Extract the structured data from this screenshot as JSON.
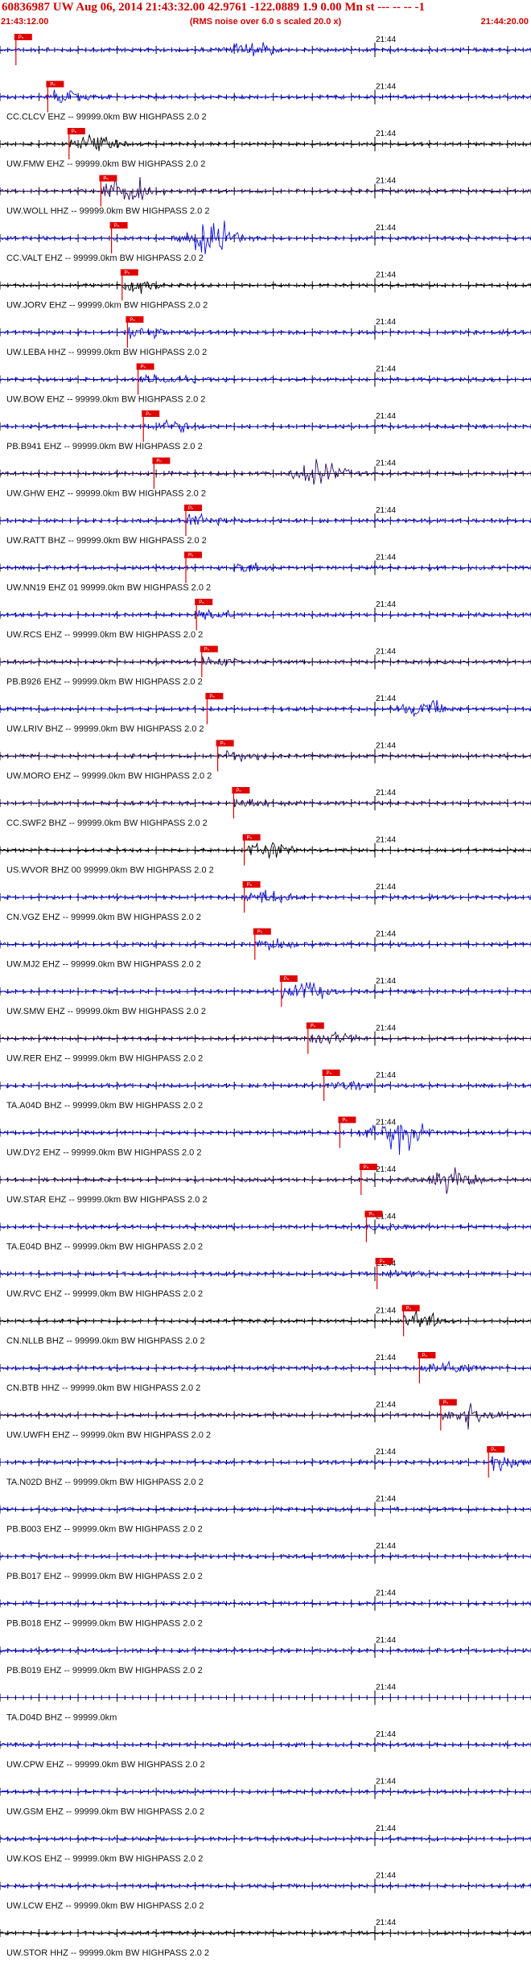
{
  "header": {
    "title": "60836987 UW Aug 06, 2014 21:43:32.00   42.9761 -122.0889  1.9 0.00 Mn st --- -- --  -1",
    "start_time": "21:43:12.00",
    "note": "(RMS noise over 6.0 s scaled 20.0 x)",
    "end_time": "21:44:20.00"
  },
  "chart_data": {
    "type": "line",
    "time_window": [
      "21:43:12.00",
      "21:44:20.00"
    ],
    "tick_label": "21:44",
    "pick_label": "Pₙ",
    "colors": {
      "blue": "#1010d8",
      "black": "#000000",
      "purple": "#2a0c5e",
      "pick": "#e00000"
    },
    "traces": [
      {
        "label": "",
        "color": "blue",
        "pick": 3,
        "burst": 47,
        "burst_amp": 2.2
      },
      {
        "label": "CC.CLCV EHZ -- 99999.0km BW  HIGHPASS  2.0  2",
        "color": "blue",
        "pick": 9,
        "burst": 11,
        "burst_amp": 3.0
      },
      {
        "label": "UW.FMW EHZ -- 99999.0km BW  HIGHPASS  2.0  2",
        "color": "black",
        "pick": 13,
        "burst": 17,
        "burst_amp": 2.8
      },
      {
        "label": "UW.WOLL HHZ -- 99999.0km BW  HIGHPASS  2.0  2",
        "color": "purple",
        "pick": 19,
        "burst": 24,
        "burst_amp": 4.5
      },
      {
        "label": "CC.VALT EHZ -- 99999.0km BW  HIGHPASS  2.0  2",
        "color": "blue",
        "pick": 21,
        "burst": 40,
        "burst_amp": 6.0
      },
      {
        "label": "UW.JORV EHZ -- 99999.0km BW  HIGHPASS  2.0  2",
        "color": "black",
        "pick": 23,
        "burst": 25,
        "burst_amp": 3.2
      },
      {
        "label": "UW.LEBA HHZ -- 99999.0km BW  HIGHPASS  2.0  2",
        "color": "blue",
        "pick": 24,
        "burst": 26,
        "burst_amp": 2.6
      },
      {
        "label": "UW.BOW EHZ -- 99999.0km BW  HIGHPASS  2.0  2",
        "color": "blue",
        "pick": 26,
        "burst": 31,
        "burst_amp": 1.6
      },
      {
        "label": "PB.B941 EHZ -- 99999.0km BW  HIGHPASS  2.0  2",
        "color": "blue",
        "pick": 27,
        "burst": 32,
        "burst_amp": 1.8
      },
      {
        "label": "UW.GHW EHZ -- 99999.0km BW  HIGHPASS  2.0  2",
        "color": "purple",
        "pick": 29,
        "burst": 60,
        "burst_amp": 4.0
      },
      {
        "label": "UW.RATT BHZ -- 99999.0km BW  HIGHPASS  2.0  2",
        "color": "blue",
        "pick": 35,
        "burst": 37,
        "burst_amp": 1.8
      },
      {
        "label": "UW.NN19 EHZ 01 99999.0km BW  HIGHPASS  2.0  2",
        "color": "blue",
        "pick": 35,
        "burst": 47,
        "burst_amp": 1.6
      },
      {
        "label": "UW.RCS EHZ -- 99999.0km BW  HIGHPASS  2.0  2",
        "color": "blue",
        "pick": 37,
        "burst": 39,
        "burst_amp": 2.0
      },
      {
        "label": "PB.B926 EHZ -- 99999.0km BW  HIGHPASS  2.0  2",
        "color": "purple",
        "pick": 38,
        "burst": 40,
        "burst_amp": 1.5
      },
      {
        "label": "UW.LRIV BHZ -- 99999.0km BW  HIGHPASS  2.0  2",
        "color": "blue",
        "pick": 39,
        "burst": 80,
        "burst_amp": 2.6
      },
      {
        "label": "UW.MORO EHZ -- 99999.0km BW  HIGHPASS  2.0  2",
        "color": "purple",
        "pick": 41,
        "burst": 45,
        "burst_amp": 1.6
      },
      {
        "label": "CC.SWF2 BHZ -- 99999.0km BW  HIGHPASS  2.0  2",
        "color": "purple",
        "pick": 44,
        "burst": 47,
        "burst_amp": 1.8
      },
      {
        "label": "US.WVOR BHZ 00 99999.0km BW  HIGHPASS  2.0  2",
        "color": "black",
        "pick": 46,
        "burst": 50,
        "burst_amp": 3.2
      },
      {
        "label": "CN.VGZ EHZ -- 99999.0km BW  HIGHPASS  2.0  2",
        "color": "blue",
        "pick": 46,
        "burst": 50,
        "burst_amp": 2.2
      },
      {
        "label": "UW.MJ2 EHZ -- 99999.0km BW  HIGHPASS  2.0  2",
        "color": "blue",
        "pick": 48,
        "burst": 52,
        "burst_amp": 1.6
      },
      {
        "label": "UW.SMW EHZ -- 99999.0km BW  HIGHPASS  2.0  2",
        "color": "blue",
        "pick": 53,
        "burst": 57,
        "burst_amp": 3.4
      },
      {
        "label": "UW.RER EHZ -- 99999.0km BW  HIGHPASS  2.0  2",
        "color": "purple",
        "pick": 58,
        "burst": 62,
        "burst_amp": 2.0
      },
      {
        "label": "TA.A04D BHZ -- 99999.0km BW  HIGHPASS  2.0  2",
        "color": "blue",
        "pick": 61,
        "burst": 65,
        "burst_amp": 1.0
      },
      {
        "label": "UW.DY2 EHZ -- 99999.0km BW  HIGHPASS  2.0  2",
        "color": "blue",
        "pick": 64,
        "burst": 75,
        "burst_amp": 6.0
      },
      {
        "label": "UW.STAR EHZ -- 99999.0km BW  HIGHPASS  2.0  2",
        "color": "purple",
        "pick": 68,
        "burst": 85,
        "burst_amp": 3.6
      },
      {
        "label": "TA.E04D BHZ -- 99999.0km BW  HIGHPASS  2.0  2",
        "color": "blue",
        "pick": 69,
        "burst": 74,
        "burst_amp": 1.0
      },
      {
        "label": "UW.RVC EHZ -- 99999.0km BW  HIGHPASS  2.0  2",
        "color": "blue",
        "pick": 71,
        "burst": 76,
        "burst_amp": 1.0
      },
      {
        "label": "CN.NLLB BHZ -- 99999.0km BW  HIGHPASS  2.0  2",
        "color": "black",
        "pick": 76,
        "burst": 79,
        "burst_amp": 2.6
      },
      {
        "label": "CN.BTB HHZ -- 99999.0km BW  HIGHPASS  2.0  2",
        "color": "blue",
        "pick": 79,
        "burst": 84,
        "burst_amp": 2.4
      },
      {
        "label": "UW.UWFH EHZ -- 99999.0km BW  HIGHPASS  2.0  2",
        "color": "purple",
        "pick": 83,
        "burst": 89,
        "burst_amp": 4.0
      },
      {
        "label": "TA.N02D BHZ -- 99999.0km BW  HIGHPASS  2.0  2",
        "color": "blue",
        "pick": 92,
        "burst": 94,
        "burst_amp": 2.4
      },
      {
        "label": "PB.B003 EHZ -- 99999.0km BW  HIGHPASS  2.0  2",
        "color": "blue",
        "pick": null,
        "burst": null,
        "burst_amp": 0
      },
      {
        "label": "PB.B017 EHZ -- 99999.0km BW  HIGHPASS  2.0  2",
        "color": "blue",
        "pick": null,
        "burst": null,
        "burst_amp": 0
      },
      {
        "label": "PB.B018 EHZ -- 99999.0km BW  HIGHPASS  2.0  2",
        "color": "blue",
        "pick": null,
        "burst": null,
        "burst_amp": 0
      },
      {
        "label": "PB.B019 EHZ -- 99999.0km BW  HIGHPASS  2.0  2",
        "color": "blue",
        "pick": null,
        "burst": null,
        "burst_amp": 0
      },
      {
        "label": "TA.D04D BHZ -- 99999.0km",
        "color": "blue",
        "pick": null,
        "burst": null,
        "burst_amp": 0,
        "flat": true
      },
      {
        "label": "UW.CPW EHZ -- 99999.0km BW  HIGHPASS  2.0  2",
        "color": "blue",
        "pick": null,
        "burst": null,
        "burst_amp": 0
      },
      {
        "label": "UW.GSM EHZ -- 99999.0km BW  HIGHPASS  2.0  2",
        "color": "blue",
        "pick": null,
        "burst": null,
        "burst_amp": 0
      },
      {
        "label": "UW.KOS EHZ -- 99999.0km BW  HIGHPASS  2.0  2",
        "color": "blue",
        "pick": null,
        "burst": null,
        "burst_amp": 0
      },
      {
        "label": "UW.LCW EHZ -- 99999.0km BW  HIGHPASS  2.0  2",
        "color": "blue",
        "pick": null,
        "burst": null,
        "burst_amp": 0
      },
      {
        "label": "UW.STOR HHZ -- 99999.0km BW  HIGHPASS  2.0  2",
        "color": "black",
        "pick": null,
        "burst": null,
        "burst_amp": 0
      }
    ]
  }
}
